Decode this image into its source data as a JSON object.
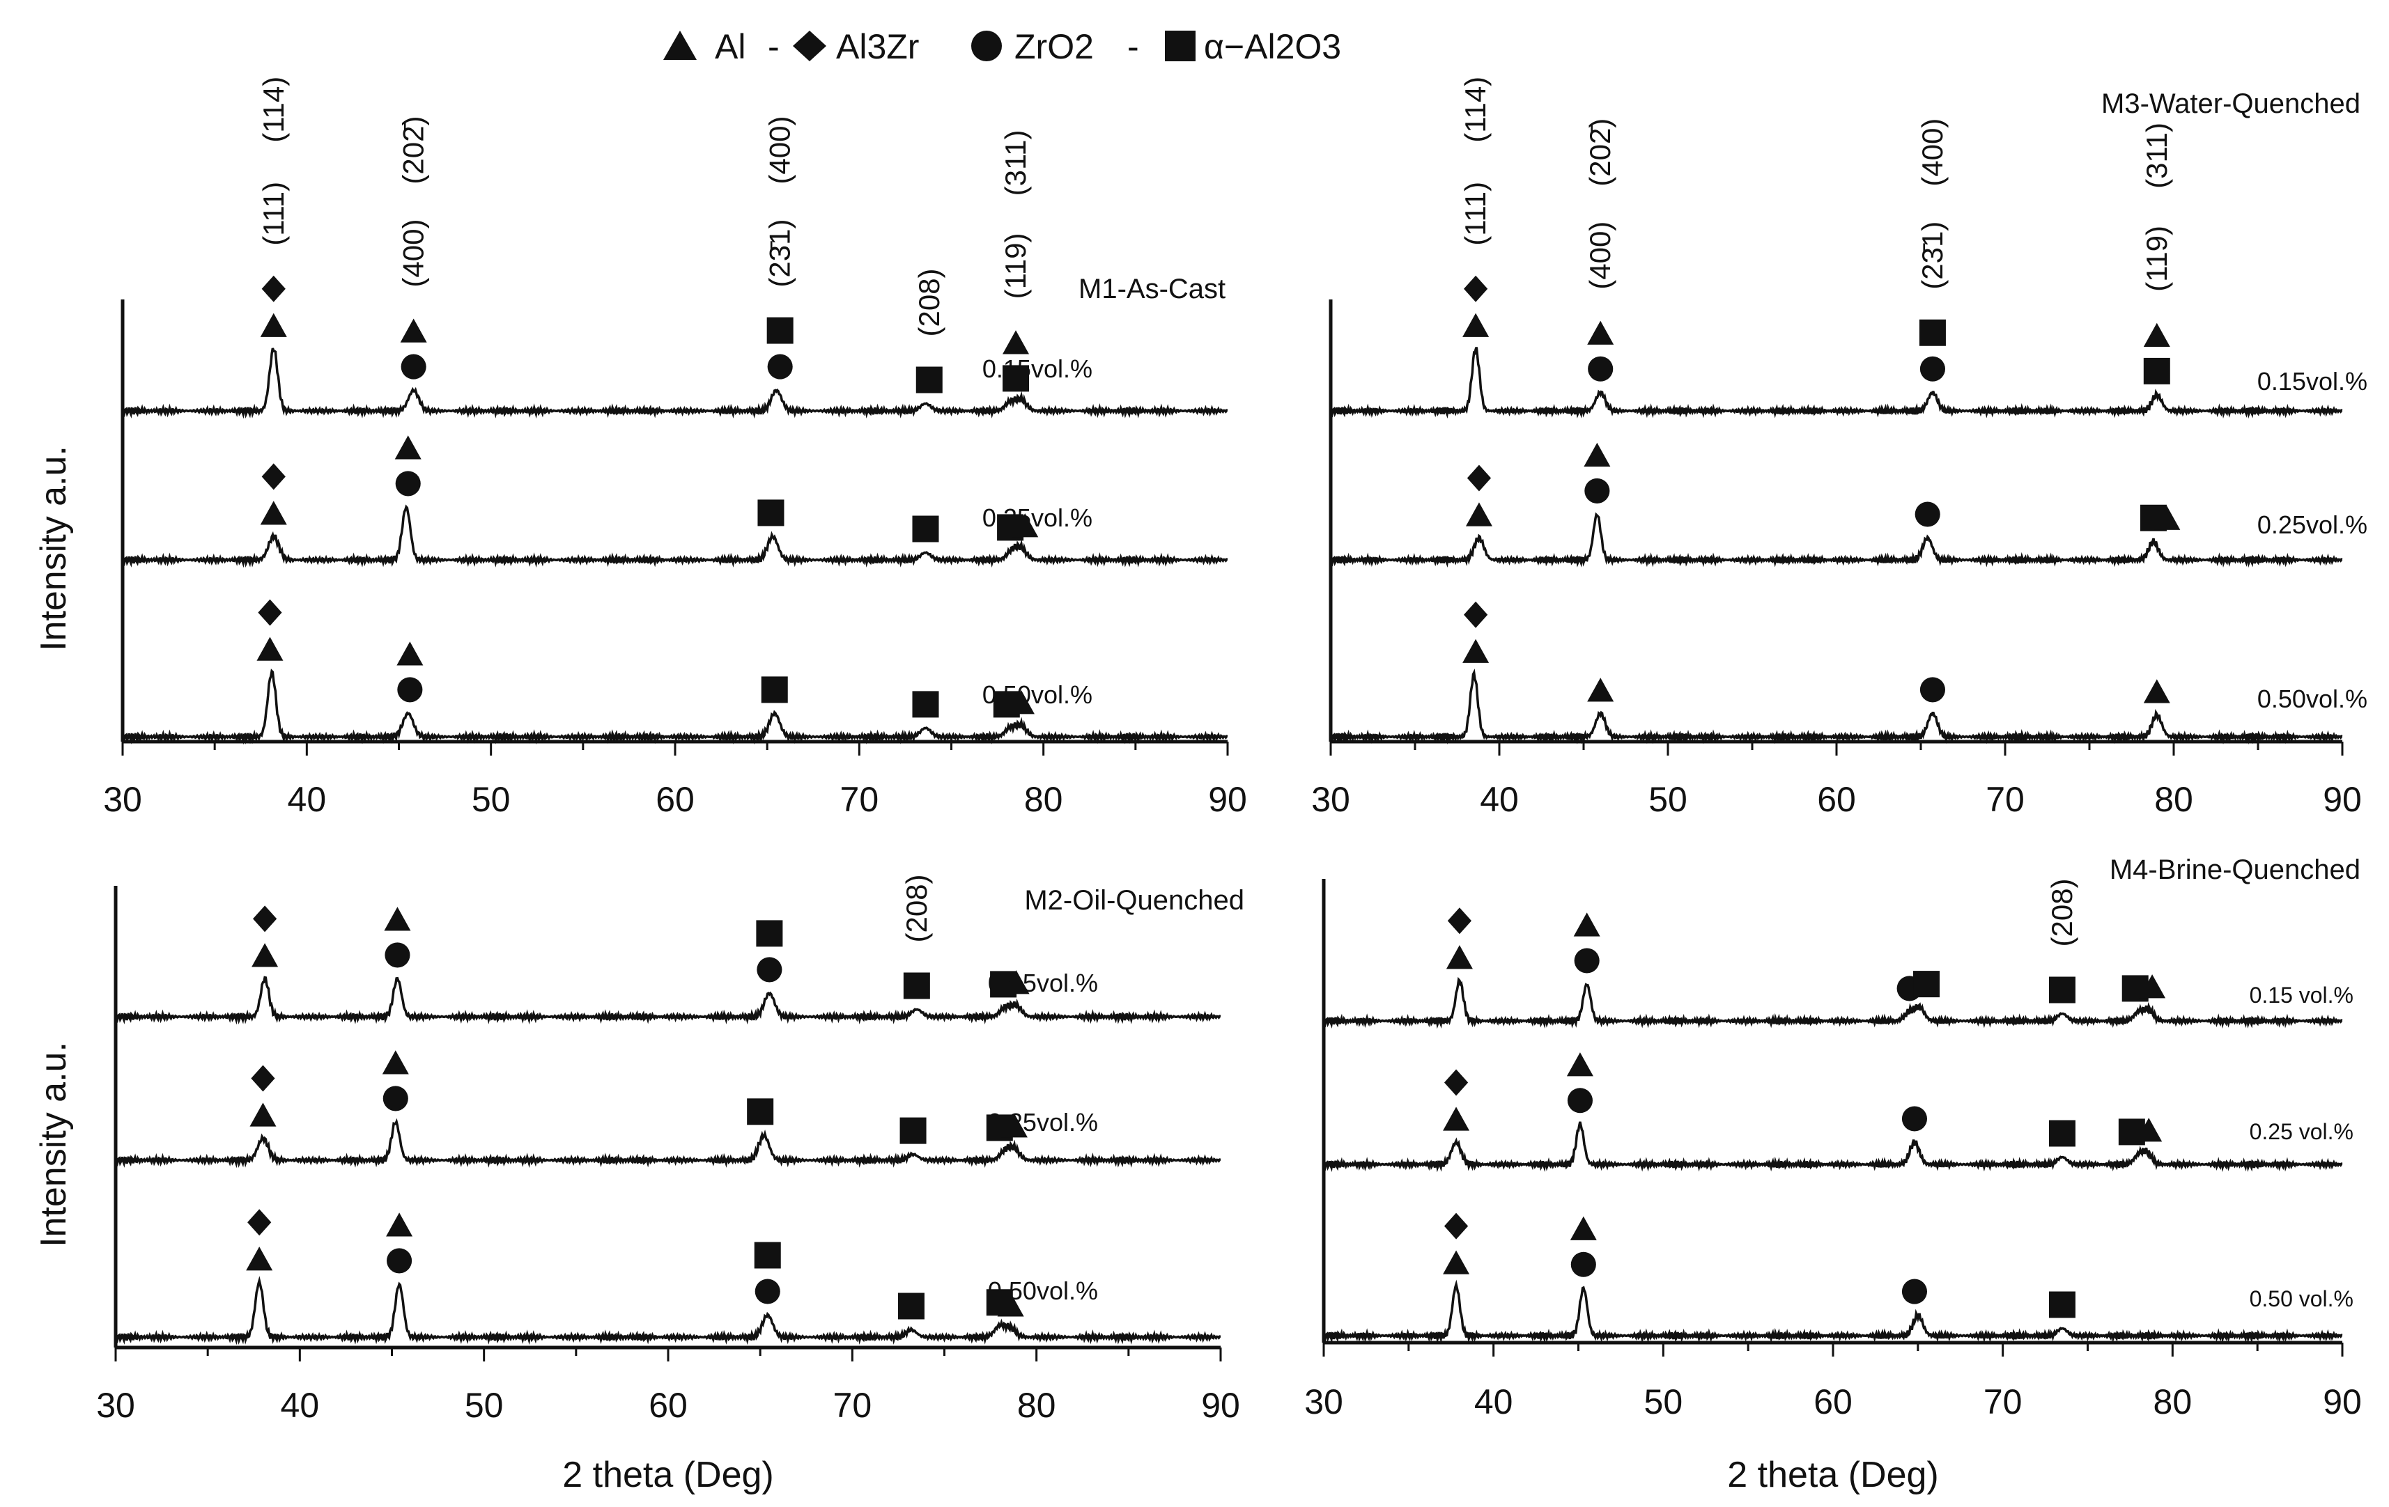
{
  "legend": {
    "items": [
      {
        "symbol": "triangle",
        "label": "Al"
      },
      {
        "symbol": "diamond",
        "label": "Al3Zr"
      },
      {
        "symbol": "circle",
        "label": "ZrO2"
      },
      {
        "symbol": "square",
        "label": "α−Al2O3"
      }
    ],
    "separator": "-"
  },
  "chart_data": [
    {
      "type": "line",
      "title": "M1-As-Cast",
      "xlabel": "",
      "ylabel": "Intensity a.u.",
      "xlim": [
        30,
        90
      ],
      "xticks": [
        30,
        40,
        50,
        60,
        70,
        80,
        90
      ],
      "series": [
        {
          "name": "0.15vol.%",
          "peaks": [
            [
              38.2,
              85
            ],
            [
              45.8,
              28
            ],
            [
              65.5,
              28
            ],
            [
              73.6,
              10
            ],
            [
              78.2,
              12
            ],
            [
              78.8,
              15
            ]
          ],
          "markers": [
            {
              "x": 38.2,
              "symbols": [
                "triangle",
                "diamond"
              ]
            },
            {
              "x": 45.8,
              "symbols": [
                "circle",
                "triangle"
              ]
            },
            {
              "x": 65.7,
              "symbols": [
                "circle",
                "square"
              ]
            },
            {
              "x": 73.8,
              "symbols": [
                "square"
              ]
            },
            {
              "x": 78.5,
              "symbols": [
                "square",
                "triangle"
              ]
            }
          ]
        },
        {
          "name": "0.25vol.%",
          "peaks": [
            [
              38.2,
              32
            ],
            [
              45.4,
              72
            ],
            [
              65.3,
              32
            ],
            [
              73.6,
              10
            ],
            [
              78.3,
              12
            ],
            [
              78.8,
              15
            ]
          ],
          "markers": [
            {
              "x": 38.2,
              "symbols": [
                "triangle",
                "diamond"
              ]
            },
            {
              "x": 45.5,
              "symbols": [
                "circle",
                "triangle"
              ]
            },
            {
              "x": 65.2,
              "symbols": [
                "square"
              ]
            },
            {
              "x": 73.6,
              "symbols": [
                "square"
              ]
            },
            {
              "x": 78.2,
              "symbols": [
                "square"
              ]
            },
            {
              "x": 79.0,
              "symbols": [
                "triangle"
              ]
            }
          ]
        },
        {
          "name": "0.50vol.%",
          "peaks": [
            [
              38.1,
              88
            ],
            [
              45.5,
              32
            ],
            [
              65.4,
              32
            ],
            [
              73.6,
              12
            ],
            [
              78.2,
              12
            ],
            [
              78.8,
              15
            ]
          ],
          "markers": [
            {
              "x": 38.0,
              "symbols": [
                "triangle",
                "diamond"
              ]
            },
            {
              "x": 45.6,
              "symbols": [
                "circle",
                "triangle"
              ]
            },
            {
              "x": 65.4,
              "symbols": [
                "square"
              ]
            },
            {
              "x": 73.6,
              "symbols": [
                "square"
              ]
            },
            {
              "x": 78.0,
              "symbols": [
                "square"
              ]
            },
            {
              "x": 78.8,
              "symbols": [
                "triangle"
              ]
            }
          ]
        }
      ],
      "annotations": [
        {
          "x": 38.2,
          "text": "(111)"
        },
        {
          "x": 38.2,
          "text": "(114)"
        },
        {
          "x": 45.8,
          "text": "(400)"
        },
        {
          "x": 45.8,
          "text": "(202̄)"
        },
        {
          "x": 65.7,
          "text": "(23̄1)"
        },
        {
          "x": 65.7,
          "text": "(400)"
        },
        {
          "x": 73.8,
          "text": "(208)"
        },
        {
          "x": 78.5,
          "text": "(119)"
        },
        {
          "x": 78.5,
          "text": "(311)"
        }
      ]
    },
    {
      "type": "line",
      "title": "M3-Water-Quenched",
      "xlabel": "",
      "ylabel": "",
      "xlim": [
        30,
        90
      ],
      "xticks": [
        30,
        40,
        50,
        60,
        70,
        80,
        90
      ],
      "series": [
        {
          "name": "0.15vol.%",
          "peaks": [
            [
              38.6,
              85
            ],
            [
              46.0,
              25
            ],
            [
              65.7,
              25
            ],
            [
              79.0,
              22
            ]
          ],
          "markers": [
            {
              "x": 38.6,
              "symbols": [
                "triangle",
                "diamond"
              ]
            },
            {
              "x": 46.0,
              "symbols": [
                "circle",
                "triangle"
              ]
            },
            {
              "x": 65.7,
              "symbols": [
                "circle",
                "square"
              ]
            },
            {
              "x": 79.0,
              "symbols": [
                "square",
                "triangle"
              ]
            }
          ]
        },
        {
          "name": "0.25vol.%",
          "peaks": [
            [
              38.8,
              30
            ],
            [
              45.8,
              62
            ],
            [
              65.4,
              30
            ],
            [
              78.8,
              25
            ]
          ],
          "markers": [
            {
              "x": 38.8,
              "symbols": [
                "triangle",
                "diamond"
              ]
            },
            {
              "x": 45.8,
              "symbols": [
                "circle",
                "triangle"
              ]
            },
            {
              "x": 65.4,
              "symbols": [
                "circle"
              ]
            },
            {
              "x": 78.8,
              "symbols": [
                "square"
              ]
            },
            {
              "x": 79.6,
              "symbols": [
                "triangle"
              ]
            }
          ]
        },
        {
          "name": "0.50vol.%",
          "peaks": [
            [
              38.5,
              85
            ],
            [
              46.0,
              32
            ],
            [
              65.7,
              32
            ],
            [
              79.0,
              30
            ]
          ],
          "markers": [
            {
              "x": 38.6,
              "symbols": [
                "triangle",
                "diamond"
              ]
            },
            {
              "x": 46.0,
              "symbols": [
                "triangle"
              ]
            },
            {
              "x": 65.7,
              "symbols": [
                "circle"
              ]
            },
            {
              "x": 79.0,
              "symbols": [
                "triangle"
              ]
            }
          ]
        }
      ],
      "annotations": [
        {
          "x": 38.6,
          "text": "(111)"
        },
        {
          "x": 38.6,
          "text": "(114)"
        },
        {
          "x": 46.0,
          "text": "(400)"
        },
        {
          "x": 46.0,
          "text": "(202̄)"
        },
        {
          "x": 65.7,
          "text": "(23̄1)"
        },
        {
          "x": 65.7,
          "text": "(400)"
        },
        {
          "x": 79.0,
          "text": "(119)"
        },
        {
          "x": 79.0,
          "text": "(311)"
        }
      ]
    },
    {
      "type": "line",
      "title": "M2-Oil-Quenched",
      "xlabel": "2 theta (Deg)",
      "ylabel": "Intensity a.u.",
      "xlim": [
        30,
        90
      ],
      "xticks": [
        30,
        40,
        50,
        60,
        70,
        80,
        90
      ],
      "series": [
        {
          "name": "0.15vol.%",
          "peaks": [
            [
              38.1,
              52
            ],
            [
              45.3,
              52
            ],
            [
              65.5,
              32
            ],
            [
              73.5,
              10
            ],
            [
              78.3,
              12
            ],
            [
              78.9,
              15
            ]
          ],
          "markers": [
            {
              "x": 38.1,
              "symbols": [
                "triangle",
                "diamond"
              ]
            },
            {
              "x": 45.3,
              "symbols": [
                "circle",
                "triangle"
              ]
            },
            {
              "x": 65.5,
              "symbols": [
                "circle",
                "square"
              ]
            },
            {
              "x": 73.5,
              "symbols": [
                "square"
              ]
            },
            {
              "x": 78.2,
              "symbols": [
                "square"
              ]
            },
            {
              "x": 78.9,
              "symbols": [
                "triangle"
              ]
            }
          ]
        },
        {
          "name": "0.25vol.%",
          "peaks": [
            [
              38.0,
              30
            ],
            [
              45.2,
              52
            ],
            [
              65.2,
              34
            ],
            [
              73.3,
              8
            ],
            [
              78.3,
              12
            ],
            [
              78.8,
              15
            ]
          ],
          "markers": [
            {
              "x": 38.0,
              "symbols": [
                "triangle",
                "diamond"
              ]
            },
            {
              "x": 45.2,
              "symbols": [
                "circle",
                "triangle"
              ]
            },
            {
              "x": 65.0,
              "symbols": [
                "square"
              ]
            },
            {
              "x": 73.3,
              "symbols": [
                "square"
              ]
            },
            {
              "x": 78.0,
              "symbols": [
                "square"
              ]
            },
            {
              "x": 78.8,
              "symbols": [
                "triangle"
              ]
            }
          ]
        },
        {
          "name": "0.50vol.%",
          "peaks": [
            [
              37.8,
              75
            ],
            [
              45.4,
              72
            ],
            [
              65.4,
              30
            ],
            [
              73.2,
              10
            ],
            [
              78.0,
              15
            ],
            [
              78.6,
              12
            ]
          ],
          "markers": [
            {
              "x": 37.8,
              "symbols": [
                "triangle",
                "diamond"
              ]
            },
            {
              "x": 45.4,
              "symbols": [
                "circle",
                "triangle"
              ]
            },
            {
              "x": 65.4,
              "symbols": [
                "circle",
                "square"
              ]
            },
            {
              "x": 73.2,
              "symbols": [
                "square"
              ]
            },
            {
              "x": 78.0,
              "symbols": [
                "square"
              ]
            },
            {
              "x": 78.6,
              "symbols": [
                "triangle"
              ]
            }
          ]
        }
      ],
      "annotations": [
        {
          "x": 73.5,
          "text": "(208)"
        }
      ]
    },
    {
      "type": "line",
      "title": "M4-Brine-Quenched",
      "xlabel": "2 theta (Deg)",
      "ylabel": "",
      "xlim": [
        30,
        90
      ],
      "xticks": [
        30,
        40,
        50,
        60,
        70,
        80,
        90
      ],
      "series": [
        {
          "name": "0.15 vol.%",
          "peaks": [
            [
              38.0,
              55
            ],
            [
              45.5,
              50
            ],
            [
              64.5,
              12
            ],
            [
              65.1,
              18
            ],
            [
              73.5,
              10
            ],
            [
              78.0,
              12
            ],
            [
              78.6,
              15
            ]
          ],
          "markers": [
            {
              "x": 38.0,
              "symbols": [
                "triangle",
                "diamond"
              ]
            },
            {
              "x": 45.5,
              "symbols": [
                "circle",
                "triangle"
              ]
            },
            {
              "x": 64.5,
              "symbols": [
                "circle"
              ]
            },
            {
              "x": 65.5,
              "symbols": [
                "square"
              ]
            },
            {
              "x": 73.5,
              "symbols": [
                "square"
              ]
            },
            {
              "x": 77.8,
              "symbols": [
                "square"
              ]
            },
            {
              "x": 78.8,
              "symbols": [
                "triangle"
              ]
            }
          ]
        },
        {
          "name": "0.25 vol.%",
          "peaks": [
            [
              37.8,
              30
            ],
            [
              45.1,
              55
            ],
            [
              64.8,
              30
            ],
            [
              73.5,
              10
            ],
            [
              78.0,
              12
            ],
            [
              78.5,
              15
            ]
          ],
          "markers": [
            {
              "x": 37.8,
              "symbols": [
                "triangle",
                "diamond"
              ]
            },
            {
              "x": 45.1,
              "symbols": [
                "circle",
                "triangle"
              ]
            },
            {
              "x": 64.8,
              "symbols": [
                "circle"
              ]
            },
            {
              "x": 73.5,
              "symbols": [
                "square"
              ]
            },
            {
              "x": 77.6,
              "symbols": [
                "square"
              ]
            },
            {
              "x": 78.6,
              "symbols": [
                "triangle"
              ]
            }
          ]
        },
        {
          "name": "0.50 vol.%",
          "peaks": [
            [
              37.8,
              68
            ],
            [
              45.3,
              65
            ],
            [
              65.0,
              28
            ],
            [
              73.5,
              10
            ]
          ],
          "markers": [
            {
              "x": 37.8,
              "symbols": [
                "triangle",
                "diamond"
              ]
            },
            {
              "x": 45.3,
              "symbols": [
                "circle",
                "triangle"
              ]
            },
            {
              "x": 64.8,
              "symbols": [
                "circle"
              ]
            },
            {
              "x": 73.5,
              "symbols": [
                "square"
              ]
            }
          ]
        }
      ],
      "annotations": [
        {
          "x": 73.5,
          "text": "(208)"
        }
      ]
    }
  ]
}
